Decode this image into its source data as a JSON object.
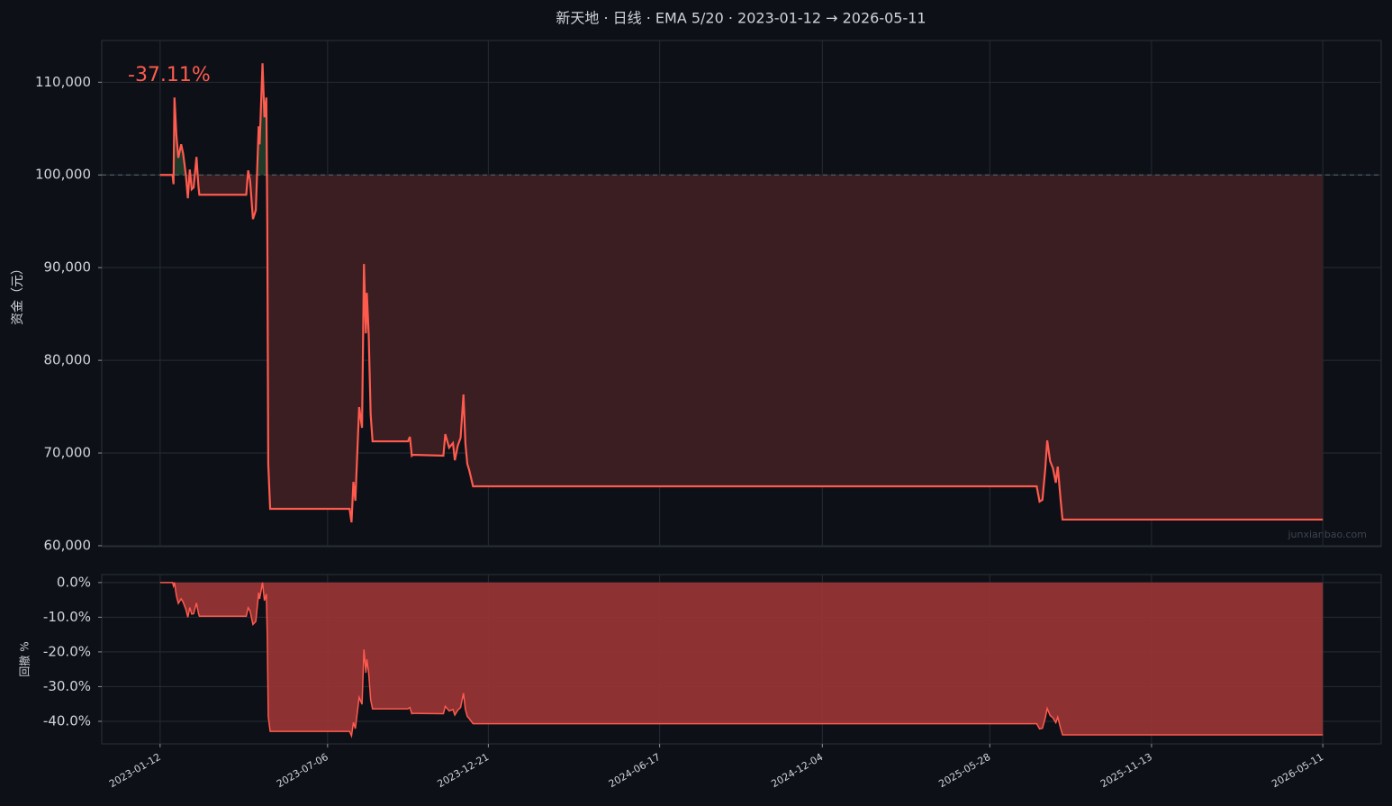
{
  "title": "新天地 · 日线 · EMA 5/20 · 2023-01-12 → 2026-05-11",
  "watermark": "junxianbao.com",
  "chart_data": [
    {
      "type": "line",
      "ylabel": "资金（元）",
      "annotation": "-37.11%",
      "annotation_color": "#ff5a4e",
      "baseline": 100000,
      "above_color": "#1e3a28",
      "below_color": "#3a1e21",
      "grid": true,
      "xlim": [
        "2022-11-12",
        "2026-07-11"
      ],
      "ylim": [
        59900,
        114500
      ],
      "yticks": [
        {
          "value": 60000,
          "label": "60,000"
        },
        {
          "value": 70000,
          "label": "70,000"
        },
        {
          "value": 80000,
          "label": "80,000"
        },
        {
          "value": 90000,
          "label": "90,000"
        },
        {
          "value": 100000,
          "label": "100,000"
        },
        {
          "value": 110000,
          "label": "110,000"
        }
      ],
      "x": [
        "2023-01-12",
        "2023-01-25",
        "2023-01-26",
        "2023-01-27",
        "2023-01-29",
        "2023-01-31",
        "2023-02-03",
        "2023-02-05",
        "2023-02-08",
        "2023-02-10",
        "2023-02-12",
        "2023-02-14",
        "2023-02-16",
        "2023-02-19",
        "2023-02-21",
        "2023-02-22",
        "2023-03-02",
        "2023-04-12",
        "2023-04-14",
        "2023-04-16",
        "2023-04-19",
        "2023-04-22",
        "2023-04-25",
        "2023-04-26",
        "2023-04-29",
        "2023-05-01",
        "2023-05-03",
        "2023-05-04",
        "2023-05-05",
        "2023-05-07",
        "2023-07-29",
        "2023-07-31",
        "2023-08-02",
        "2023-08-04",
        "2023-08-08",
        "2023-08-11",
        "2023-08-13",
        "2023-08-15",
        "2023-08-16",
        "2023-08-18",
        "2023-08-20",
        "2023-08-22",
        "2023-09-28",
        "2023-09-30",
        "2023-10-02",
        "2023-10-03",
        "2023-11-04",
        "2023-11-06",
        "2023-11-10",
        "2023-11-14",
        "2023-11-16",
        "2023-11-19",
        "2023-11-22",
        "2023-11-25",
        "2023-11-27",
        "2023-11-29",
        "2023-12-01",
        "2023-12-05",
        "2025-07-16",
        "2025-07-19",
        "2025-07-22",
        "2025-07-25",
        "2025-07-27",
        "2025-07-30",
        "2025-08-02",
        "2025-08-05",
        "2025-08-07",
        "2025-08-10",
        "2025-08-12",
        "2026-05-11"
      ],
      "series": [
        {
          "name": "资金",
          "color": "#ff5a4e",
          "values": [
            100000,
            100000,
            99000,
            108350,
            104270,
            101840,
            103300,
            102330,
            99900,
            97480,
            100580,
            98450,
            98640,
            101940,
            98830,
            97860,
            97860,
            97860,
            100490,
            99420,
            95240,
            96210,
            105240,
            103300,
            112040,
            106210,
            108350,
            94560,
            68830,
            63980,
            63980,
            62520,
            66890,
            64850,
            74950,
            72720,
            90390,
            82910,
            87280,
            82720,
            74170,
            71260,
            71260,
            71750,
            69710,
            69810,
            69710,
            72040,
            70580,
            71070,
            69220,
            70780,
            71650,
            76310,
            71070,
            68830,
            68150,
            66410,
            66410,
            64760,
            64950,
            68350,
            71360,
            69130,
            68350,
            66800,
            68540,
            64950,
            62820,
            62820
          ]
        }
      ]
    },
    {
      "type": "area",
      "ylabel": "回撤 %",
      "grid": true,
      "xlim": [
        "2022-11-12",
        "2026-07-11"
      ],
      "ylim": [
        -46.5,
        2.3
      ],
      "yticks": [
        {
          "value": 0,
          "label": "0.0%"
        },
        {
          "value": -10,
          "label": "-10.0%"
        },
        {
          "value": -20,
          "label": "-20.0%"
        },
        {
          "value": -30,
          "label": "-30.0%"
        },
        {
          "value": -40,
          "label": "-40.0%"
        }
      ],
      "xticks": [
        "2023-01-12",
        "2023-07-06",
        "2023-12-21",
        "2024-06-17",
        "2024-12-04",
        "2025-05-28",
        "2025-11-13",
        "2026-05-11"
      ],
      "x": [
        "2023-01-12",
        "2023-01-25",
        "2023-01-26",
        "2023-01-27",
        "2023-01-29",
        "2023-01-31",
        "2023-02-03",
        "2023-02-05",
        "2023-02-08",
        "2023-02-10",
        "2023-02-12",
        "2023-02-14",
        "2023-02-16",
        "2023-02-19",
        "2023-02-21",
        "2023-02-22",
        "2023-03-02",
        "2023-04-12",
        "2023-04-14",
        "2023-04-16",
        "2023-04-19",
        "2023-04-22",
        "2023-04-25",
        "2023-04-26",
        "2023-04-29",
        "2023-05-01",
        "2023-05-03",
        "2023-05-04",
        "2023-05-05",
        "2023-05-07",
        "2023-07-29",
        "2023-07-31",
        "2023-08-02",
        "2023-08-04",
        "2023-08-08",
        "2023-08-11",
        "2023-08-13",
        "2023-08-15",
        "2023-08-16",
        "2023-08-18",
        "2023-08-20",
        "2023-08-22",
        "2023-09-28",
        "2023-09-30",
        "2023-10-02",
        "2023-10-03",
        "2023-11-04",
        "2023-11-06",
        "2023-11-10",
        "2023-11-14",
        "2023-11-16",
        "2023-11-19",
        "2023-11-22",
        "2023-11-25",
        "2023-11-27",
        "2023-11-29",
        "2023-12-01",
        "2023-12-05",
        "2025-07-16",
        "2025-07-19",
        "2025-07-22",
        "2025-07-25",
        "2025-07-27",
        "2025-07-30",
        "2025-08-02",
        "2025-08-05",
        "2025-08-07",
        "2025-08-10",
        "2025-08-12",
        "2026-05-11"
      ],
      "series": [
        {
          "name": "回撤",
          "color": "#ff5a4e",
          "fill": "#9b3535",
          "values": [
            0,
            0,
            -1.0,
            0,
            -3.8,
            -6.0,
            -4.7,
            -5.6,
            -7.8,
            -10.0,
            -7.2,
            -9.1,
            -9.0,
            -5.9,
            -8.8,
            -9.7,
            -9.7,
            -9.7,
            -7.3,
            -8.2,
            -12.1,
            -11.2,
            -2.9,
            -4.7,
            0,
            -5.2,
            -3.3,
            -15.6,
            -38.6,
            -42.9,
            -42.9,
            -44.2,
            -40.3,
            -42.1,
            -33.1,
            -35.1,
            -19.3,
            -26.0,
            -22.1,
            -26.2,
            -33.8,
            -36.4,
            -36.4,
            -36.0,
            -37.8,
            -37.7,
            -37.8,
            -35.7,
            -37.0,
            -36.6,
            -38.2,
            -36.8,
            -36.0,
            -31.9,
            -36.6,
            -38.6,
            -39.2,
            -40.7,
            -40.7,
            -42.2,
            -42.0,
            -39.0,
            -36.3,
            -38.3,
            -39.0,
            -40.4,
            -38.8,
            -42.0,
            -43.9,
            -43.9
          ]
        }
      ]
    }
  ]
}
